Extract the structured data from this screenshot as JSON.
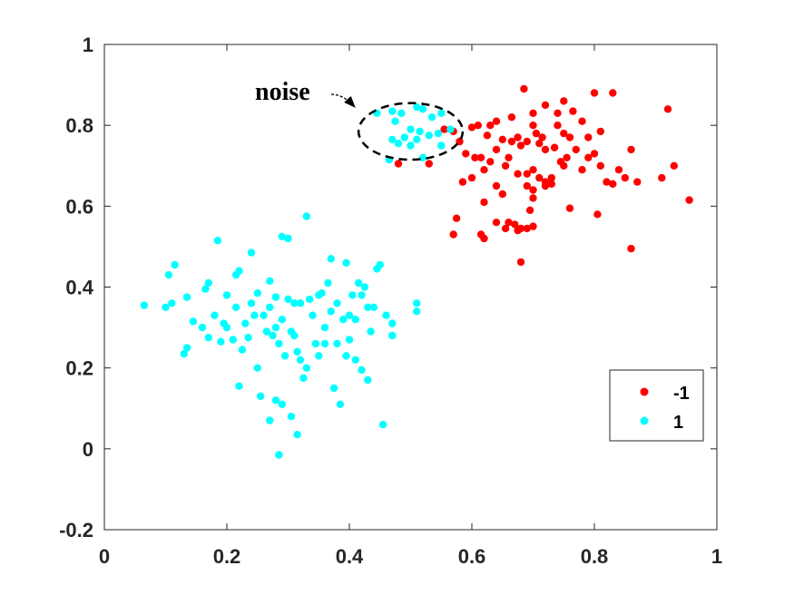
{
  "chart_data": {
    "type": "scatter",
    "title": "",
    "xlabel": "",
    "ylabel": "",
    "xlim": [
      0,
      1
    ],
    "ylim": [
      -0.2,
      1
    ],
    "x_ticks": [
      "0",
      "0.2",
      "0.4",
      "0.6",
      "0.8",
      "1"
    ],
    "x_tick_values": [
      0,
      0.2,
      0.4,
      0.6,
      0.8,
      1
    ],
    "y_ticks": [
      "-0.2",
      "0",
      "0.2",
      "0.4",
      "0.6",
      "0.8",
      "1"
    ],
    "y_tick_values": [
      -0.2,
      0,
      0.2,
      0.4,
      0.6,
      0.8,
      1
    ],
    "grid": false,
    "legend_position": "bottom-right",
    "annotation": {
      "text": "noise",
      "target_center": [
        0.5,
        0.785
      ],
      "target_radius": [
        0.085,
        0.07
      ]
    },
    "series": [
      {
        "name": "-1",
        "color": "#ff0000",
        "points": [
          [
            0.685,
            0.89
          ],
          [
            0.8,
            0.88
          ],
          [
            0.83,
            0.88
          ],
          [
            0.92,
            0.84
          ],
          [
            0.6,
            0.795
          ],
          [
            0.72,
            0.85
          ],
          [
            0.75,
            0.86
          ],
          [
            0.74,
            0.83
          ],
          [
            0.765,
            0.835
          ],
          [
            0.78,
            0.81
          ],
          [
            0.64,
            0.81
          ],
          [
            0.63,
            0.8
          ],
          [
            0.61,
            0.8
          ],
          [
            0.625,
            0.775
          ],
          [
            0.65,
            0.765
          ],
          [
            0.665,
            0.76
          ],
          [
            0.7,
            0.8
          ],
          [
            0.705,
            0.78
          ],
          [
            0.715,
            0.77
          ],
          [
            0.74,
            0.8
          ],
          [
            0.75,
            0.78
          ],
          [
            0.76,
            0.77
          ],
          [
            0.79,
            0.77
          ],
          [
            0.81,
            0.785
          ],
          [
            0.675,
            0.77
          ],
          [
            0.68,
            0.75
          ],
          [
            0.69,
            0.76
          ],
          [
            0.71,
            0.755
          ],
          [
            0.72,
            0.74
          ],
          [
            0.735,
            0.745
          ],
          [
            0.57,
            0.785
          ],
          [
            0.58,
            0.76
          ],
          [
            0.59,
            0.73
          ],
          [
            0.605,
            0.72
          ],
          [
            0.615,
            0.72
          ],
          [
            0.63,
            0.71
          ],
          [
            0.62,
            0.69
          ],
          [
            0.6,
            0.67
          ],
          [
            0.585,
            0.66
          ],
          [
            0.64,
            0.65
          ],
          [
            0.655,
            0.7
          ],
          [
            0.675,
            0.68
          ],
          [
            0.69,
            0.68
          ],
          [
            0.7,
            0.69
          ],
          [
            0.71,
            0.67
          ],
          [
            0.72,
            0.66
          ],
          [
            0.73,
            0.67
          ],
          [
            0.745,
            0.71
          ],
          [
            0.755,
            0.72
          ],
          [
            0.77,
            0.74
          ],
          [
            0.79,
            0.72
          ],
          [
            0.8,
            0.73
          ],
          [
            0.81,
            0.7
          ],
          [
            0.84,
            0.69
          ],
          [
            0.86,
            0.74
          ],
          [
            0.82,
            0.66
          ],
          [
            0.83,
            0.655
          ],
          [
            0.85,
            0.67
          ],
          [
            0.87,
            0.66
          ],
          [
            0.78,
            0.69
          ],
          [
            0.69,
            0.65
          ],
          [
            0.7,
            0.64
          ],
          [
            0.72,
            0.65
          ],
          [
            0.73,
            0.655
          ],
          [
            0.76,
            0.595
          ],
          [
            0.805,
            0.58
          ],
          [
            0.91,
            0.67
          ],
          [
            0.93,
            0.7
          ],
          [
            0.955,
            0.615
          ],
          [
            0.86,
            0.495
          ],
          [
            0.575,
            0.57
          ],
          [
            0.57,
            0.53
          ],
          [
            0.62,
            0.52
          ],
          [
            0.615,
            0.53
          ],
          [
            0.64,
            0.56
          ],
          [
            0.655,
            0.545
          ],
          [
            0.66,
            0.56
          ],
          [
            0.68,
            0.545
          ],
          [
            0.67,
            0.555
          ],
          [
            0.675,
            0.54
          ],
          [
            0.7,
            0.55
          ],
          [
            0.69,
            0.545
          ],
          [
            0.65,
            0.63
          ],
          [
            0.7,
            0.62
          ],
          [
            0.695,
            0.59
          ],
          [
            0.68,
            0.462
          ],
          [
            0.53,
            0.705
          ],
          [
            0.555,
            0.79
          ],
          [
            0.48,
            0.705
          ],
          [
            0.62,
            0.61
          ],
          [
            0.75,
            0.7
          ],
          [
            0.66,
            0.72
          ],
          [
            0.64,
            0.74
          ],
          [
            0.665,
            0.82
          ],
          [
            0.7,
            0.83
          ]
        ]
      },
      {
        "name": "1",
        "color": "#00ffff",
        "points": [
          [
            0.445,
            0.83
          ],
          [
            0.47,
            0.835
          ],
          [
            0.475,
            0.81
          ],
          [
            0.485,
            0.83
          ],
          [
            0.51,
            0.845
          ],
          [
            0.52,
            0.84
          ],
          [
            0.535,
            0.82
          ],
          [
            0.55,
            0.83
          ],
          [
            0.565,
            0.79
          ],
          [
            0.5,
            0.79
          ],
          [
            0.515,
            0.785
          ],
          [
            0.53,
            0.775
          ],
          [
            0.545,
            0.78
          ],
          [
            0.47,
            0.765
          ],
          [
            0.49,
            0.77
          ],
          [
            0.51,
            0.765
          ],
          [
            0.48,
            0.755
          ],
          [
            0.5,
            0.75
          ],
          [
            0.55,
            0.75
          ],
          [
            0.52,
            0.72
          ],
          [
            0.465,
            0.715
          ],
          [
            0.065,
            0.355
          ],
          [
            0.1,
            0.35
          ],
          [
            0.105,
            0.43
          ],
          [
            0.11,
            0.36
          ],
          [
            0.115,
            0.455
          ],
          [
            0.13,
            0.235
          ],
          [
            0.135,
            0.375
          ],
          [
            0.135,
            0.25
          ],
          [
            0.145,
            0.315
          ],
          [
            0.16,
            0.3
          ],
          [
            0.165,
            0.395
          ],
          [
            0.17,
            0.41
          ],
          [
            0.17,
            0.275
          ],
          [
            0.18,
            0.33
          ],
          [
            0.185,
            0.515
          ],
          [
            0.19,
            0.265
          ],
          [
            0.195,
            0.31
          ],
          [
            0.2,
            0.3
          ],
          [
            0.21,
            0.27
          ],
          [
            0.215,
            0.43
          ],
          [
            0.22,
            0.44
          ],
          [
            0.215,
            0.35
          ],
          [
            0.225,
            0.245
          ],
          [
            0.23,
            0.31
          ],
          [
            0.235,
            0.275
          ],
          [
            0.24,
            0.485
          ],
          [
            0.24,
            0.36
          ],
          [
            0.245,
            0.33
          ],
          [
            0.25,
            0.2
          ],
          [
            0.255,
            0.13
          ],
          [
            0.26,
            0.33
          ],
          [
            0.265,
            0.29
          ],
          [
            0.27,
            0.415
          ],
          [
            0.27,
            0.35
          ],
          [
            0.275,
            0.28
          ],
          [
            0.28,
            0.3
          ],
          [
            0.28,
            0.375
          ],
          [
            0.285,
            0.26
          ],
          [
            0.29,
            0.32
          ],
          [
            0.295,
            0.23
          ],
          [
            0.3,
            0.52
          ],
          [
            0.3,
            0.37
          ],
          [
            0.305,
            0.29
          ],
          [
            0.31,
            0.36
          ],
          [
            0.315,
            0.24
          ],
          [
            0.32,
            0.22
          ],
          [
            0.32,
            0.36
          ],
          [
            0.325,
            0.175
          ],
          [
            0.33,
            0.575
          ],
          [
            0.335,
            0.37
          ],
          [
            0.34,
            0.33
          ],
          [
            0.345,
            0.26
          ],
          [
            0.35,
            0.38
          ],
          [
            0.355,
            0.385
          ],
          [
            0.36,
            0.3
          ],
          [
            0.365,
            0.41
          ],
          [
            0.37,
            0.34
          ],
          [
            0.375,
            0.15
          ],
          [
            0.38,
            0.26
          ],
          [
            0.385,
            0.11
          ],
          [
            0.39,
            0.32
          ],
          [
            0.395,
            0.23
          ],
          [
            0.4,
            0.27
          ],
          [
            0.405,
            0.38
          ],
          [
            0.41,
            0.32
          ],
          [
            0.415,
            0.41
          ],
          [
            0.42,
            0.38
          ],
          [
            0.425,
            0.4
          ],
          [
            0.43,
            0.35
          ],
          [
            0.435,
            0.29
          ],
          [
            0.44,
            0.35
          ],
          [
            0.445,
            0.445
          ],
          [
            0.45,
            0.455
          ],
          [
            0.455,
            0.06
          ],
          [
            0.46,
            0.33
          ],
          [
            0.47,
            0.31
          ],
          [
            0.47,
            0.28
          ],
          [
            0.51,
            0.36
          ],
          [
            0.51,
            0.34
          ],
          [
            0.285,
            -0.015
          ],
          [
            0.305,
            0.08
          ],
          [
            0.315,
            0.035
          ],
          [
            0.27,
            0.07
          ],
          [
            0.28,
            0.12
          ],
          [
            0.29,
            0.11
          ],
          [
            0.22,
            0.155
          ],
          [
            0.31,
            0.28
          ],
          [
            0.33,
            0.2
          ],
          [
            0.35,
            0.23
          ],
          [
            0.41,
            0.22
          ],
          [
            0.42,
            0.195
          ],
          [
            0.43,
            0.17
          ],
          [
            0.37,
            0.47
          ],
          [
            0.395,
            0.46
          ],
          [
            0.25,
            0.385
          ],
          [
            0.2,
            0.38
          ],
          [
            0.29,
            0.525
          ],
          [
            0.36,
            0.26
          ],
          [
            0.38,
            0.36
          ],
          [
            0.4,
            0.33
          ]
        ]
      }
    ]
  }
}
